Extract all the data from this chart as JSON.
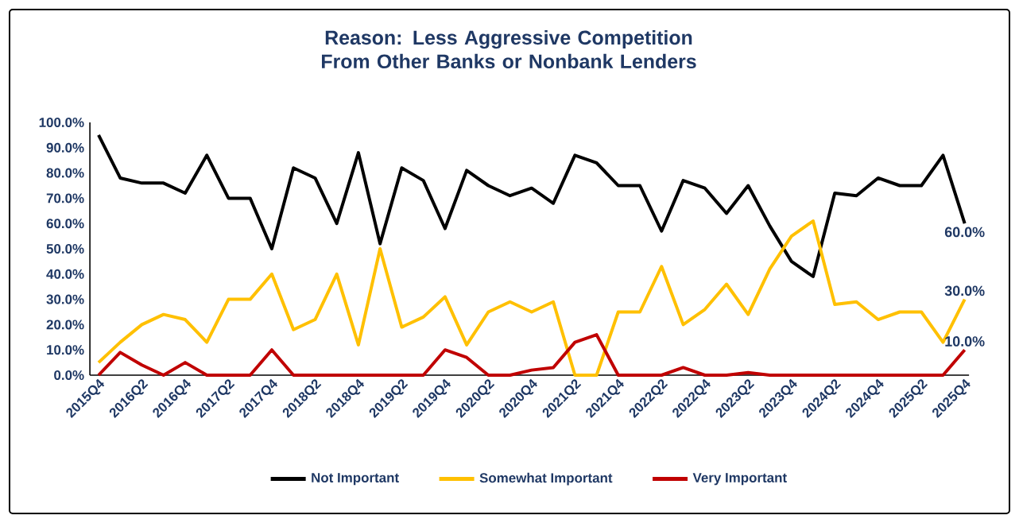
{
  "chart_data": {
    "type": "line",
    "title": "Reason: Less Aggressive Competition From Other Banks or Nonbank Lenders",
    "categories": [
      "2015Q4",
      null,
      "2016Q2",
      null,
      "2016Q4",
      null,
      "2017Q2",
      null,
      "2017Q4",
      null,
      "2018Q2",
      null,
      "2018Q4",
      null,
      "2019Q2",
      null,
      "2019Q4",
      null,
      "2020Q2",
      null,
      "2020Q4",
      null,
      "2021Q2",
      null,
      "2021Q4",
      null,
      "2022Q2",
      null,
      "2022Q4",
      null,
      "2023Q2",
      null,
      "2023Q4",
      null,
      "2024Q2",
      null,
      "2024Q4",
      null,
      "2025Q2",
      null,
      "2025Q4"
    ],
    "series": [
      {
        "name": "Not Important",
        "color": "#000000",
        "values": [
          95,
          78,
          76,
          76,
          72,
          87,
          70,
          70,
          50,
          82,
          78,
          60,
          88,
          52,
          82,
          77,
          58,
          81,
          75,
          71,
          74,
          68,
          87,
          84,
          75,
          75,
          57,
          77,
          74,
          64,
          75,
          59,
          45,
          39,
          72,
          71,
          78,
          75,
          75,
          87,
          60
        ],
        "value_labels": [
          null,
          null,
          null,
          null,
          null,
          null,
          null,
          null,
          null,
          null,
          null,
          null,
          null,
          null,
          null,
          null,
          null,
          null,
          null,
          null,
          null,
          null,
          null,
          null,
          null,
          null,
          null,
          null,
          null,
          null,
          null,
          null,
          null,
          null,
          null,
          null,
          null,
          null,
          null,
          null,
          "60.0%"
        ]
      },
      {
        "name": "Somewhat Important",
        "color": "#ffc000",
        "values": [
          5,
          13,
          20,
          24,
          22,
          13,
          30,
          30,
          40,
          18,
          22,
          40,
          12,
          50,
          19,
          23,
          31,
          12,
          25,
          29,
          25,
          29,
          0,
          0,
          25,
          25,
          43,
          20,
          26,
          36,
          24,
          42,
          55,
          61,
          28,
          29,
          22,
          25,
          25,
          13,
          30
        ],
        "value_labels": [
          null,
          null,
          null,
          null,
          null,
          null,
          null,
          null,
          null,
          null,
          null,
          null,
          null,
          null,
          null,
          null,
          null,
          null,
          null,
          null,
          null,
          null,
          null,
          null,
          null,
          null,
          null,
          null,
          null,
          null,
          null,
          null,
          null,
          null,
          null,
          null,
          null,
          null,
          null,
          null,
          "30.0%"
        ]
      },
      {
        "name": "Very Important",
        "color": "#c00000",
        "values": [
          0,
          9,
          4,
          0,
          5,
          0,
          0,
          0,
          10,
          0,
          0,
          0,
          0,
          0,
          0,
          0,
          10,
          7,
          0,
          0,
          2,
          3,
          13,
          16,
          0,
          0,
          0,
          3,
          0,
          0,
          1,
          0,
          0,
          0,
          0,
          0,
          0,
          0,
          0,
          0,
          10
        ],
        "value_labels": [
          null,
          null,
          null,
          null,
          null,
          null,
          null,
          null,
          null,
          null,
          null,
          null,
          null,
          null,
          null,
          null,
          null,
          null,
          null,
          null,
          null,
          null,
          null,
          null,
          null,
          null,
          null,
          null,
          null,
          null,
          null,
          null,
          null,
          null,
          null,
          null,
          null,
          null,
          null,
          null,
          "10.0%"
        ]
      }
    ],
    "ylim": [
      0,
      100
    ],
    "yticks": [
      {
        "value": 0,
        "label": "0.0%"
      },
      {
        "value": 10,
        "label": "10.0%"
      },
      {
        "value": 20,
        "label": "20.0%"
      },
      {
        "value": 30,
        "label": "30.0%"
      },
      {
        "value": 40,
        "label": "40.0%"
      },
      {
        "value": 50,
        "label": "50.0%"
      },
      {
        "value": 60,
        "label": "60.0%"
      },
      {
        "value": 70,
        "label": "70.0%"
      },
      {
        "value": 80,
        "label": "80.0%"
      },
      {
        "value": 90,
        "label": "90.0%"
      },
      {
        "value": 100,
        "label": "100.0%"
      }
    ],
    "legend": "bottom"
  }
}
